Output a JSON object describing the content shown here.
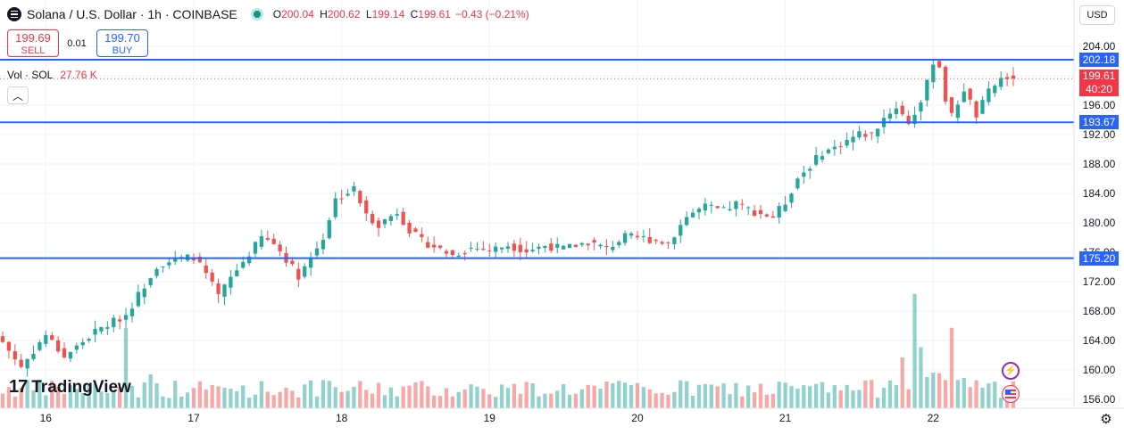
{
  "header": {
    "symbol_title": "Solana / U.S. Dollar · 1h · COINBASE",
    "open_label": "O",
    "open": "200.04",
    "high_label": "H",
    "high": "200.62",
    "low_label": "L",
    "low": "199.14",
    "close_label": "C",
    "close": "199.61",
    "change": "−0.43 (−0.21%)"
  },
  "trade": {
    "sell_price": "199.69",
    "sell_label": "SELL",
    "spread": "0.01",
    "buy_price": "199.70",
    "buy_label": "BUY"
  },
  "volume_legend": {
    "label": "Vol · SOL",
    "value": "27.76 K"
  },
  "currency_button": "USD",
  "logo_text": "TradingView",
  "price_labels": {
    "line_top": "202.18",
    "last_price": "199.61",
    "countdown": "40:20",
    "line_mid": "193.67",
    "line_low": "175.20"
  },
  "colors": {
    "up": "#26a69a",
    "down": "#ef5350",
    "line": "#2962ff",
    "text": "#131722",
    "grid": "#f0f3fa"
  },
  "icons": [
    "collapse-chevron-icon",
    "settings-gear-icon",
    "lightning-icon",
    "us-flag-icon"
  ],
  "chart_data": {
    "type": "candlestick",
    "title": "Solana / U.S. Dollar · 1h · COINBASE",
    "y_ticks": [
      204.0,
      200.0,
      196.0,
      192.0,
      188.0,
      184.0,
      180.0,
      176.0,
      172.0,
      168.0,
      164.0,
      160.0,
      156.0
    ],
    "y_tick_labels": [
      "204.00",
      "200.00",
      "196.00",
      "192.00",
      "188.00",
      "184.00",
      "180.00",
      "176.00",
      "172.00",
      "168.00",
      "164.00",
      "160.00",
      "156.00"
    ],
    "ylim": [
      155.6,
      206.0
    ],
    "x_tick_labels": [
      "16",
      "17",
      "18",
      "19",
      "20",
      "21",
      "22"
    ],
    "x_tick_hours": [
      7,
      31,
      55,
      79,
      103,
      127,
      151
    ],
    "horizontal_lines": [
      202.18,
      193.67,
      175.2
    ],
    "last_price": 199.61,
    "anchors": [
      [
        0,
        163.8
      ],
      [
        3,
        160.4
      ],
      [
        7,
        164.8
      ],
      [
        10,
        161.8
      ],
      [
        15,
        165.2
      ],
      [
        20,
        167.5
      ],
      [
        22,
        170.2
      ],
      [
        25,
        174.2
      ],
      [
        28,
        175.0
      ],
      [
        31,
        175.4
      ],
      [
        33,
        173.0
      ],
      [
        35,
        170.0
      ],
      [
        37,
        172.5
      ],
      [
        39,
        174.7
      ],
      [
        42,
        178.0
      ],
      [
        44,
        177.2
      ],
      [
        46,
        175.1
      ],
      [
        48,
        172.8
      ],
      [
        50,
        175.3
      ],
      [
        52,
        178.0
      ],
      [
        54,
        183.2
      ],
      [
        57,
        184.6
      ],
      [
        59,
        181.0
      ],
      [
        61,
        179.8
      ],
      [
        64,
        181.5
      ],
      [
        66,
        179.0
      ],
      [
        68,
        177.5
      ],
      [
        70,
        176.8
      ],
      [
        73,
        175.6
      ],
      [
        76,
        176.6
      ],
      [
        79,
        176.3
      ],
      [
        82,
        177.0
      ],
      [
        85,
        176.2
      ],
      [
        88,
        176.9
      ],
      [
        91,
        176.5
      ],
      [
        95,
        177.4
      ],
      [
        98,
        176.5
      ],
      [
        101,
        178.1
      ],
      [
        104,
        177.9
      ],
      [
        108,
        177.3
      ],
      [
        111,
        180.9
      ],
      [
        114,
        182.2
      ],
      [
        117,
        181.6
      ],
      [
        119,
        182.6
      ],
      [
        122,
        181.5
      ],
      [
        125,
        180.8
      ],
      [
        127,
        182.8
      ],
      [
        129,
        186.1
      ],
      [
        131,
        187.8
      ],
      [
        133,
        189.6
      ],
      [
        135,
        190.2
      ],
      [
        137,
        191.2
      ],
      [
        139,
        192.1
      ],
      [
        141,
        192.0
      ],
      [
        143,
        194.3
      ],
      [
        145,
        195.8
      ],
      [
        147,
        193.6
      ],
      [
        149,
        196.4
      ],
      [
        150,
        198.9
      ],
      [
        151,
        202.0
      ],
      [
        152,
        201.3
      ],
      [
        153,
        196.8
      ],
      [
        154,
        194.5
      ],
      [
        156,
        198.2
      ],
      [
        158,
        194.6
      ],
      [
        160,
        197.8
      ],
      [
        162,
        199.6
      ],
      [
        163,
        199.8
      ],
      [
        164,
        199.61
      ]
    ],
    "volume_scale": [
      0,
      100
    ],
    "volume_pattern": "relative volume bars 0–100, spikes near hours 20, 25, 148, 154"
  }
}
